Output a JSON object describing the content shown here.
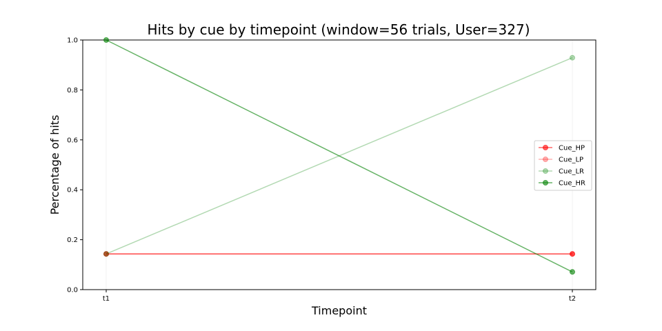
{
  "chart_data": {
    "type": "line",
    "title": "Hits by cue by timepoint (window=56 trials, User=327)",
    "xlabel": "Timepoint",
    "ylabel": "Percentage of hits",
    "categories": [
      "t1",
      "t2"
    ],
    "ylim": [
      0,
      1.0
    ],
    "yticks": [
      "0.0",
      "0.2",
      "0.4",
      "0.6",
      "0.8",
      "1.0"
    ],
    "grid": "vertical",
    "legend_position": "right",
    "series": [
      {
        "name": "Cue_HP",
        "values": [
          0.143,
          0.143
        ],
        "color": "#ff0000",
        "opacity": 0.6
      },
      {
        "name": "Cue_LP",
        "values": [
          0.143,
          0.143
        ],
        "color": "#ff0000",
        "opacity": 0.3
      },
      {
        "name": "Cue_LR",
        "values": [
          0.143,
          0.929
        ],
        "color": "#008000",
        "opacity": 0.3
      },
      {
        "name": "Cue_HR",
        "values": [
          1.0,
          0.071
        ],
        "color": "#008000",
        "opacity": 0.6
      }
    ]
  }
}
